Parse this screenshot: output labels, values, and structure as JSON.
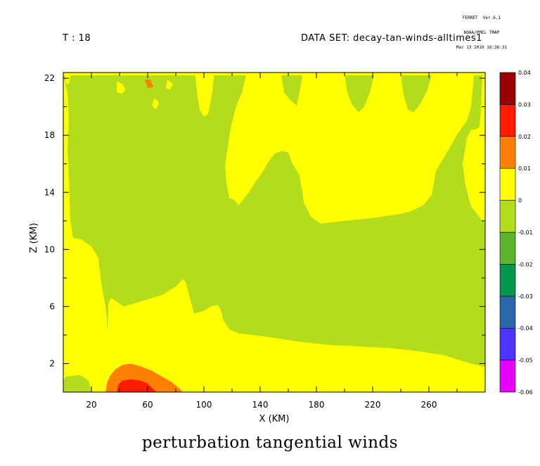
{
  "header": {
    "stamp_line1": "FERRET  Ver.6.1",
    "stamp_line2": "NOAA/PMEL TMAP",
    "stamp_line3": "Mar 13 2010 16:36:31",
    "time_label": "T : 18",
    "dataset_label": "DATA SET: decay-tan-winds-alltimes1"
  },
  "chart_data": {
    "type": "heatmap",
    "title": "perturbation tangential winds",
    "xlabel": "X (KM)",
    "ylabel": "Z (KM)",
    "xlim": [
      0,
      300
    ],
    "ylim": [
      0,
      22.4
    ],
    "x_ticks": [
      20,
      60,
      100,
      140,
      180,
      220,
      260
    ],
    "y_ticks": [
      2,
      6,
      10,
      14,
      18,
      22
    ],
    "colorbar": {
      "levels": [
        -0.06,
        -0.05,
        -0.04,
        -0.03,
        -0.02,
        -0.01,
        0,
        0.01,
        0.02,
        0.03,
        0.04
      ],
      "tick_labels": [
        "-0.06",
        "-0.05",
        "-0.04",
        "-0.03",
        "-0.02",
        "-0.01",
        "0",
        "0.01",
        "0.02",
        "0.03",
        "0.04"
      ],
      "colors": [
        "#e600ff",
        "#4d33ff",
        "#2a66aa",
        "#00994d",
        "#5ab52a",
        "#b3dd1a",
        "#ffff00",
        "#ff8000",
        "#ff1a00",
        "#990000"
      ]
    },
    "regions": [
      {
        "range": [
          -0.01,
          0
        ],
        "color": "#b3dd1a",
        "polygons": [
          [
            [
              0,
              22.2
            ],
            [
              3,
              21
            ],
            [
              4,
              19
            ],
            [
              3,
              17
            ],
            [
              4,
              15
            ],
            [
              5,
              12
            ],
            [
              7,
              10.8
            ],
            [
              13,
              10.7
            ],
            [
              20,
              10.2
            ],
            [
              25,
              9.4
            ],
            [
              27,
              7.6
            ],
            [
              30,
              6
            ],
            [
              31,
              5.2
            ],
            [
              31,
              4.2
            ],
            [
              33,
              3.3
            ],
            [
              34,
              3
            ],
            [
              34,
              5
            ],
            [
              32,
              5.5
            ],
            [
              32,
              6.2
            ],
            [
              34,
              6.6
            ],
            [
              43,
              6
            ],
            [
              50,
              6.2
            ],
            [
              60,
              6.5
            ],
            [
              70,
              6.8
            ],
            [
              80,
              7.4
            ],
            [
              85,
              7.9
            ],
            [
              87,
              7.7
            ],
            [
              90,
              6.6
            ],
            [
              92,
              5.9
            ],
            [
              93,
              5.5
            ],
            [
              100,
              5.7
            ],
            [
              105,
              6
            ],
            [
              110,
              6.1
            ],
            [
              112,
              5.7
            ],
            [
              114,
              5
            ],
            [
              118,
              4.4
            ],
            [
              125,
              4.1
            ],
            [
              135,
              4
            ],
            [
              150,
              3.8
            ],
            [
              170,
              3.5
            ],
            [
              190,
              3.3
            ],
            [
              210,
              3.2
            ],
            [
              230,
              3.1
            ],
            [
              250,
              2.9
            ],
            [
              270,
              2.6
            ],
            [
              290,
              2
            ],
            [
              298,
              1.8
            ],
            [
              300,
              1.8
            ],
            [
              300,
              12
            ],
            [
              298,
              12
            ],
            [
              295,
              12.4
            ],
            [
              290,
              13
            ],
            [
              286,
              14.5
            ],
            [
              284,
              16
            ],
            [
              287,
              17.8
            ],
            [
              290,
              18.4
            ],
            [
              293,
              18.4
            ],
            [
              296,
              18.6
            ],
            [
              297,
              19.7
            ],
            [
              298,
              22.2
            ],
            [
              292,
              22.2
            ],
            [
              290,
              20
            ],
            [
              287,
              19
            ],
            [
              281,
              18.2
            ],
            [
              274,
              17
            ],
            [
              265,
              15.5
            ],
            [
              262,
              13.8
            ],
            [
              256,
              13.1
            ],
            [
              248,
              12.7
            ],
            [
              240,
              12.5
            ],
            [
              220,
              12.2
            ],
            [
              200,
              12
            ],
            [
              183,
              11.8
            ],
            [
              176,
              12.3
            ],
            [
              171,
              13.3
            ],
            [
              170,
              14
            ],
            [
              168,
              15.2
            ],
            [
              163,
              16
            ],
            [
              160,
              16.8
            ],
            [
              155,
              16.9
            ],
            [
              150,
              16.7
            ],
            [
              145,
              16
            ],
            [
              141,
              15.3
            ],
            [
              137,
              14.8
            ],
            [
              132,
              14
            ],
            [
              128,
              13.5
            ],
            [
              125,
              13.1
            ],
            [
              121,
              13.5
            ],
            [
              118,
              13.6
            ],
            [
              116,
              14.7
            ],
            [
              115,
              15.8
            ],
            [
              117,
              17.2
            ],
            [
              119,
              18.5
            ],
            [
              122,
              19.7
            ],
            [
              124,
              20.3
            ],
            [
              127,
              21
            ],
            [
              130,
              22.2
            ],
            [
              107,
              22.2
            ],
            [
              106,
              21
            ],
            [
              103,
              19.5
            ],
            [
              100,
              19.3
            ],
            [
              97,
              19.8
            ],
            [
              95,
              21
            ],
            [
              94,
              22.2
            ]
          ],
          [
            [
              0,
              0
            ],
            [
              0,
              0.8
            ],
            [
              2,
              1.1
            ],
            [
              12,
              1.2
            ],
            [
              18,
              0.8
            ],
            [
              20,
              0
            ]
          ],
          [
            [
              155,
              22.2
            ],
            [
              157,
              21
            ],
            [
              162,
              20.4
            ],
            [
              166,
              20.1
            ],
            [
              168,
              21
            ],
            [
              170,
              22.2
            ]
          ],
          [
            [
              200,
              22.2
            ],
            [
              202,
              21
            ],
            [
              205,
              20.2
            ],
            [
              210,
              19.6
            ],
            [
              214,
              20
            ],
            [
              218,
              21
            ],
            [
              221,
              22.2
            ]
          ],
          [
            [
              240,
              22.2
            ],
            [
              242,
              20.8
            ],
            [
              245,
              19.8
            ],
            [
              249,
              19.6
            ],
            [
              254,
              20.2
            ],
            [
              259,
              21.2
            ],
            [
              262,
              22.2
            ]
          ]
        ]
      },
      {
        "range": [
          0,
          0.01
        ],
        "color": "#ffff00",
        "polygons": [
          [
            [
              1,
              22.2
            ],
            [
              5,
              22.2
            ],
            [
              4,
              21.6
            ],
            [
              2,
              21.6
            ]
          ],
          [
            [
              38,
              21.8
            ],
            [
              42,
              21.6
            ],
            [
              44,
              21.2
            ],
            [
              42,
              20.9
            ],
            [
              38,
              21
            ]
          ],
          [
            [
              74,
              21.9
            ],
            [
              78,
              21.6
            ],
            [
              76,
              21.2
            ],
            [
              73,
              21.3
            ]
          ],
          [
            [
              65,
              20.6
            ],
            [
              68,
              20.3
            ],
            [
              66,
              19.8
            ],
            [
              63,
              20.1
            ]
          ],
          [
            [
              32,
              5.5
            ],
            [
              34,
              5.6
            ],
            [
              35,
              4.2
            ],
            [
              34,
              3.1
            ],
            [
              32,
              3.2
            ],
            [
              31,
              4.2
            ]
          ]
        ]
      },
      {
        "range": [
          0.01,
          0.02
        ],
        "color": "#ff8000",
        "polygons": [
          [
            [
              30,
              0
            ],
            [
              31,
              0.6
            ],
            [
              33,
              1.1
            ],
            [
              37,
              1.6
            ],
            [
              42,
              1.9
            ],
            [
              48,
              2
            ],
            [
              55,
              1.8
            ],
            [
              63,
              1.5
            ],
            [
              70,
              1.1
            ],
            [
              77,
              0.7
            ],
            [
              82,
              0.3
            ],
            [
              85,
              0
            ]
          ],
          [
            [
              58,
              21.9
            ],
            [
              62,
              21.9
            ],
            [
              64,
              21.4
            ],
            [
              60,
              21.3
            ]
          ]
        ]
      },
      {
        "range": [
          0.02,
          0.03
        ],
        "color": "#ff1a00",
        "polygons": [
          [
            [
              38,
              0
            ],
            [
              39,
              0.5
            ],
            [
              42,
              0.8
            ],
            [
              48,
              0.9
            ],
            [
              55,
              0.8
            ],
            [
              60,
              0.6
            ],
            [
              63,
              0.3
            ],
            [
              66,
              0
            ]
          ]
        ]
      }
    ]
  }
}
